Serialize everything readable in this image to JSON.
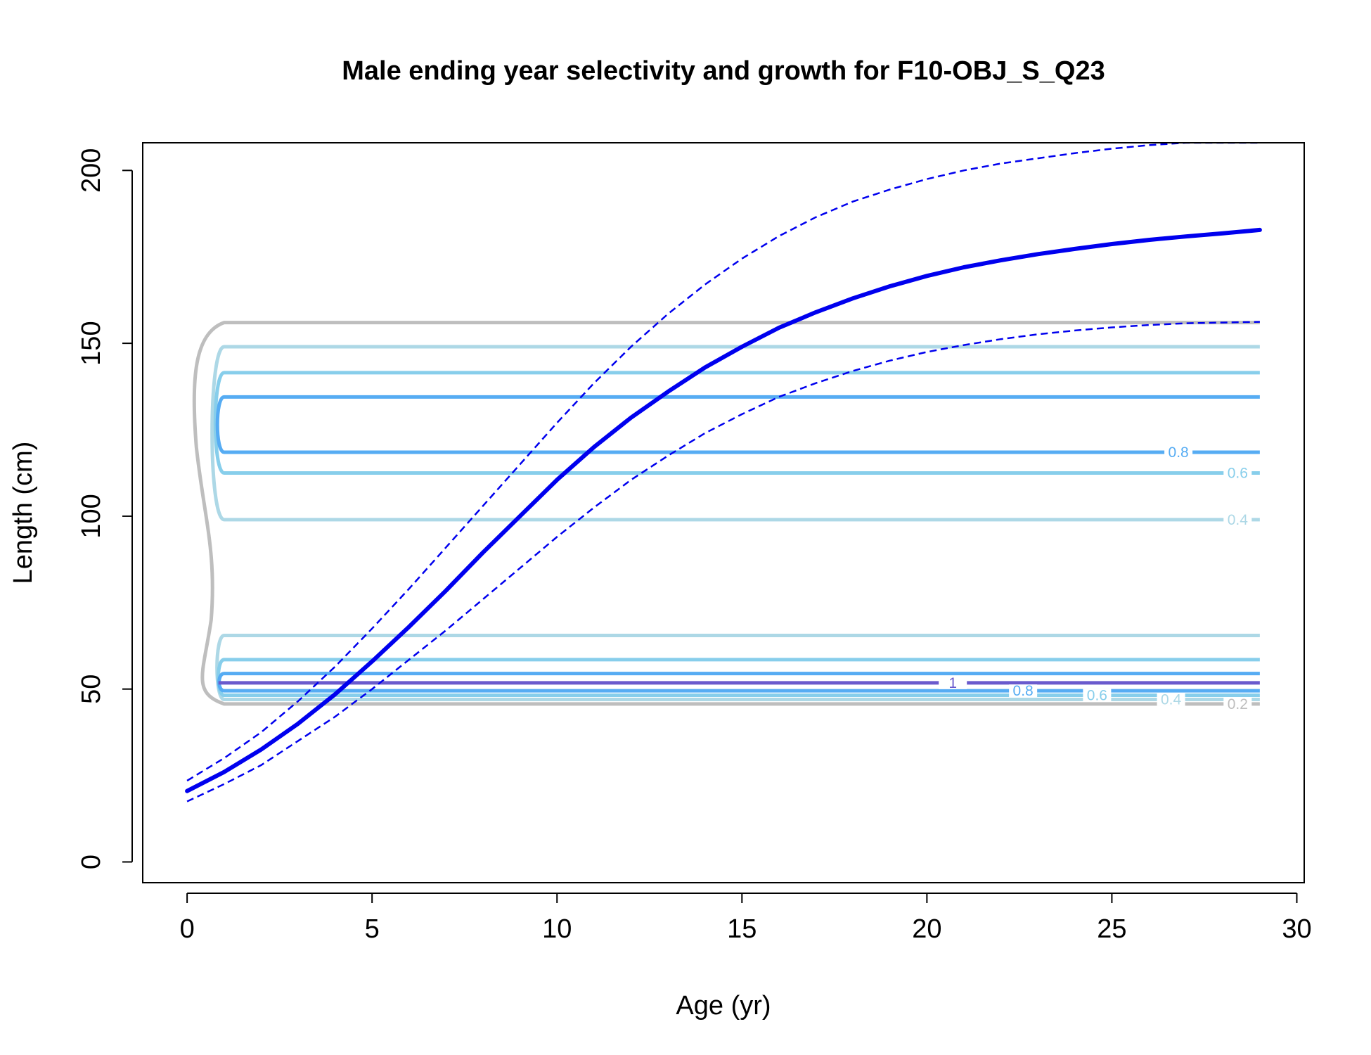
{
  "chart_data": {
    "type": "line",
    "title": "Male ending year selectivity and growth for F10-OBJ_S_Q23",
    "xlabel": "Age (yr)",
    "ylabel": "Length (cm)",
    "xlim": [
      -1.2,
      30.2
    ],
    "ylim": [
      -6,
      208
    ],
    "x_ticks": [
      0,
      5,
      10,
      15,
      20,
      25,
      30
    ],
    "y_ticks": [
      0,
      50,
      100,
      150,
      200
    ],
    "grid": false,
    "legend": "none",
    "colors": {
      "growth": "#0000ee",
      "contour_0.2": "#bebebe",
      "contour_0.4": "#add8e6",
      "contour_0.6": "#87ceeb",
      "contour_0.8": "#56acf3",
      "contour_1": "#6a5acd"
    },
    "series": [
      {
        "role": "mean",
        "style": "solid",
        "x": [
          0,
          1,
          2,
          3,
          4,
          5,
          6,
          7,
          8,
          9,
          10,
          11,
          12,
          13,
          14,
          15,
          16,
          17,
          18,
          19,
          20,
          21,
          22,
          23,
          24,
          25,
          26,
          27,
          28,
          29
        ],
        "values": [
          20.5,
          26,
          32.5,
          40,
          48.5,
          58,
          68,
          78.5,
          89.5,
          100,
          110.5,
          120,
          128.5,
          136,
          143,
          149,
          154.5,
          159,
          163,
          166.5,
          169.5,
          172,
          174,
          175.8,
          177.3,
          178.7,
          179.9,
          180.9,
          181.8,
          182.8
        ]
      },
      {
        "role": "upper",
        "style": "dashed",
        "x": [
          0,
          1,
          2,
          3,
          4,
          5,
          6,
          7,
          8,
          9,
          10,
          11,
          12,
          13,
          14,
          15,
          16,
          17,
          18,
          19,
          20,
          21,
          22,
          23,
          24,
          25,
          26,
          27,
          28,
          29
        ],
        "values": [
          23.5,
          30,
          37.5,
          46.5,
          56.5,
          67.5,
          79,
          91,
          103,
          115,
          127,
          138.5,
          149,
          158.5,
          167,
          174.5,
          181,
          186.5,
          191,
          194.5,
          197.5,
          200,
          202,
          203.5,
          205,
          206.3,
          207.3,
          208,
          208,
          208
        ]
      },
      {
        "role": "lower",
        "style": "dashed",
        "x": [
          0,
          1,
          2,
          3,
          4,
          5,
          6,
          7,
          8,
          9,
          10,
          11,
          12,
          13,
          14,
          15,
          16,
          17,
          18,
          19,
          20,
          21,
          22,
          23,
          24,
          25,
          26,
          27,
          28,
          29
        ],
        "values": [
          17.5,
          22.5,
          28,
          35,
          42,
          50,
          58.5,
          67,
          76,
          85,
          94,
          102.5,
          110.5,
          117.5,
          124,
          129.5,
          134.5,
          138.5,
          142,
          145,
          147.5,
          149.5,
          151.2,
          152.6,
          153.7,
          154.6,
          155.3,
          155.8,
          156,
          156.2
        ]
      }
    ],
    "contours": [
      {
        "level": 0.2,
        "label": "0.2",
        "x_range": [
          1,
          29
        ],
        "y_values": [
          45.7,
          156
        ]
      },
      {
        "level": 0.4,
        "label": "0.4",
        "x_range": [
          1,
          29
        ],
        "y_values": [
          47,
          65.5,
          99,
          149
        ]
      },
      {
        "level": 0.6,
        "label": "0.6",
        "x_range": [
          1,
          29
        ],
        "y_values": [
          48.2,
          58.5,
          112.5,
          141.5
        ]
      },
      {
        "level": 0.8,
        "label": "0.8",
        "x_range": [
          1,
          29
        ],
        "y_values": [
          49.5,
          54.5,
          118.5,
          134.5
        ]
      },
      {
        "level": 1,
        "label": "1",
        "x_range": [
          1,
          29
        ],
        "y_values": [
          51.8
        ]
      }
    ]
  }
}
